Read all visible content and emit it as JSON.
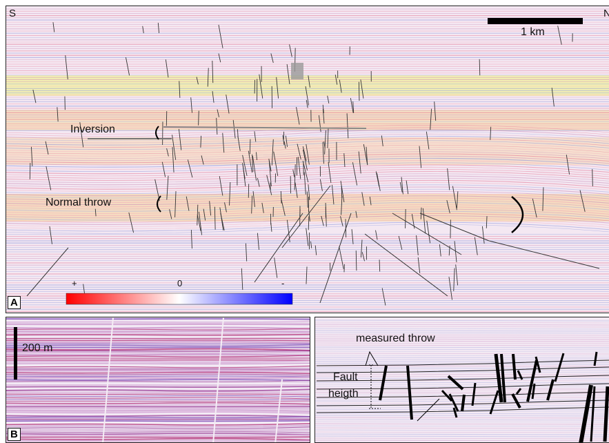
{
  "panel_a": {
    "letter": "A",
    "direction_left": "S",
    "direction_right": "N",
    "scale_label": "1 km",
    "label_inversion": "Inversion",
    "label_normal_throw": "Normal throw",
    "colorbar": {
      "label_plus": "+",
      "label_zero": "0",
      "label_minus": "-",
      "colors": [
        "#ff0000",
        "#ffffff",
        "#0000ff"
      ]
    }
  },
  "panel_b": {
    "letter": "B",
    "scale_label": "200 m"
  },
  "panel_c": {
    "label_measured_throw": "measured throw",
    "label_fault_line1": "Fault",
    "label_fault_line2": "heigth"
  }
}
